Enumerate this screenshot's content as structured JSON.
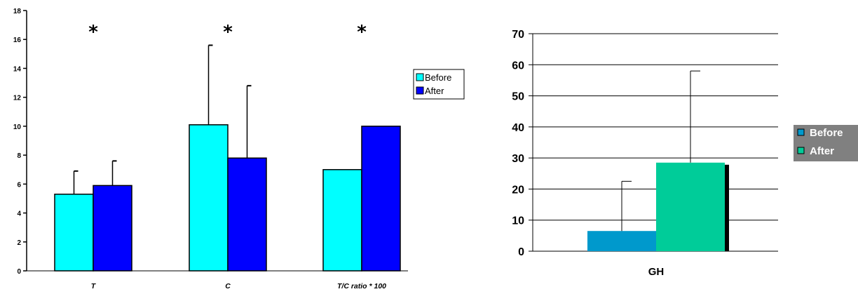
{
  "chart_data": [
    {
      "type": "bar",
      "categories": [
        "T",
        "C",
        "T/C ratio * 100"
      ],
      "series": [
        {
          "name": "Before",
          "values": [
            5.3,
            10.1,
            7.0
          ],
          "errors": [
            1.6,
            5.5,
            null
          ],
          "color": "#00FFFF"
        },
        {
          "name": "After",
          "values": [
            5.9,
            7.8,
            10.0
          ],
          "errors": [
            1.7,
            5.0,
            null
          ],
          "color": "#0000FF"
        }
      ],
      "annotations": [
        "*",
        "*",
        "*"
      ],
      "ylim": [
        0,
        18
      ],
      "yticks": [
        "0",
        "2",
        "4",
        "6",
        "8",
        "10",
        "12",
        "14",
        "16",
        "18"
      ],
      "legend": "right",
      "grid": false
    },
    {
      "type": "bar",
      "categories": [
        "GH"
      ],
      "series": [
        {
          "name": "Before",
          "values": [
            6.5
          ],
          "errors": [
            16.0
          ],
          "color": "#0099CC"
        },
        {
          "name": "After",
          "values": [
            28.5
          ],
          "errors": [
            29.5
          ],
          "color": "#00CC99"
        }
      ],
      "ylim": [
        0,
        70
      ],
      "yticks": [
        "0",
        "10",
        "20",
        "30",
        "40",
        "50",
        "60",
        "70"
      ],
      "legend": "right",
      "grid": true,
      "background": "#808080"
    }
  ]
}
